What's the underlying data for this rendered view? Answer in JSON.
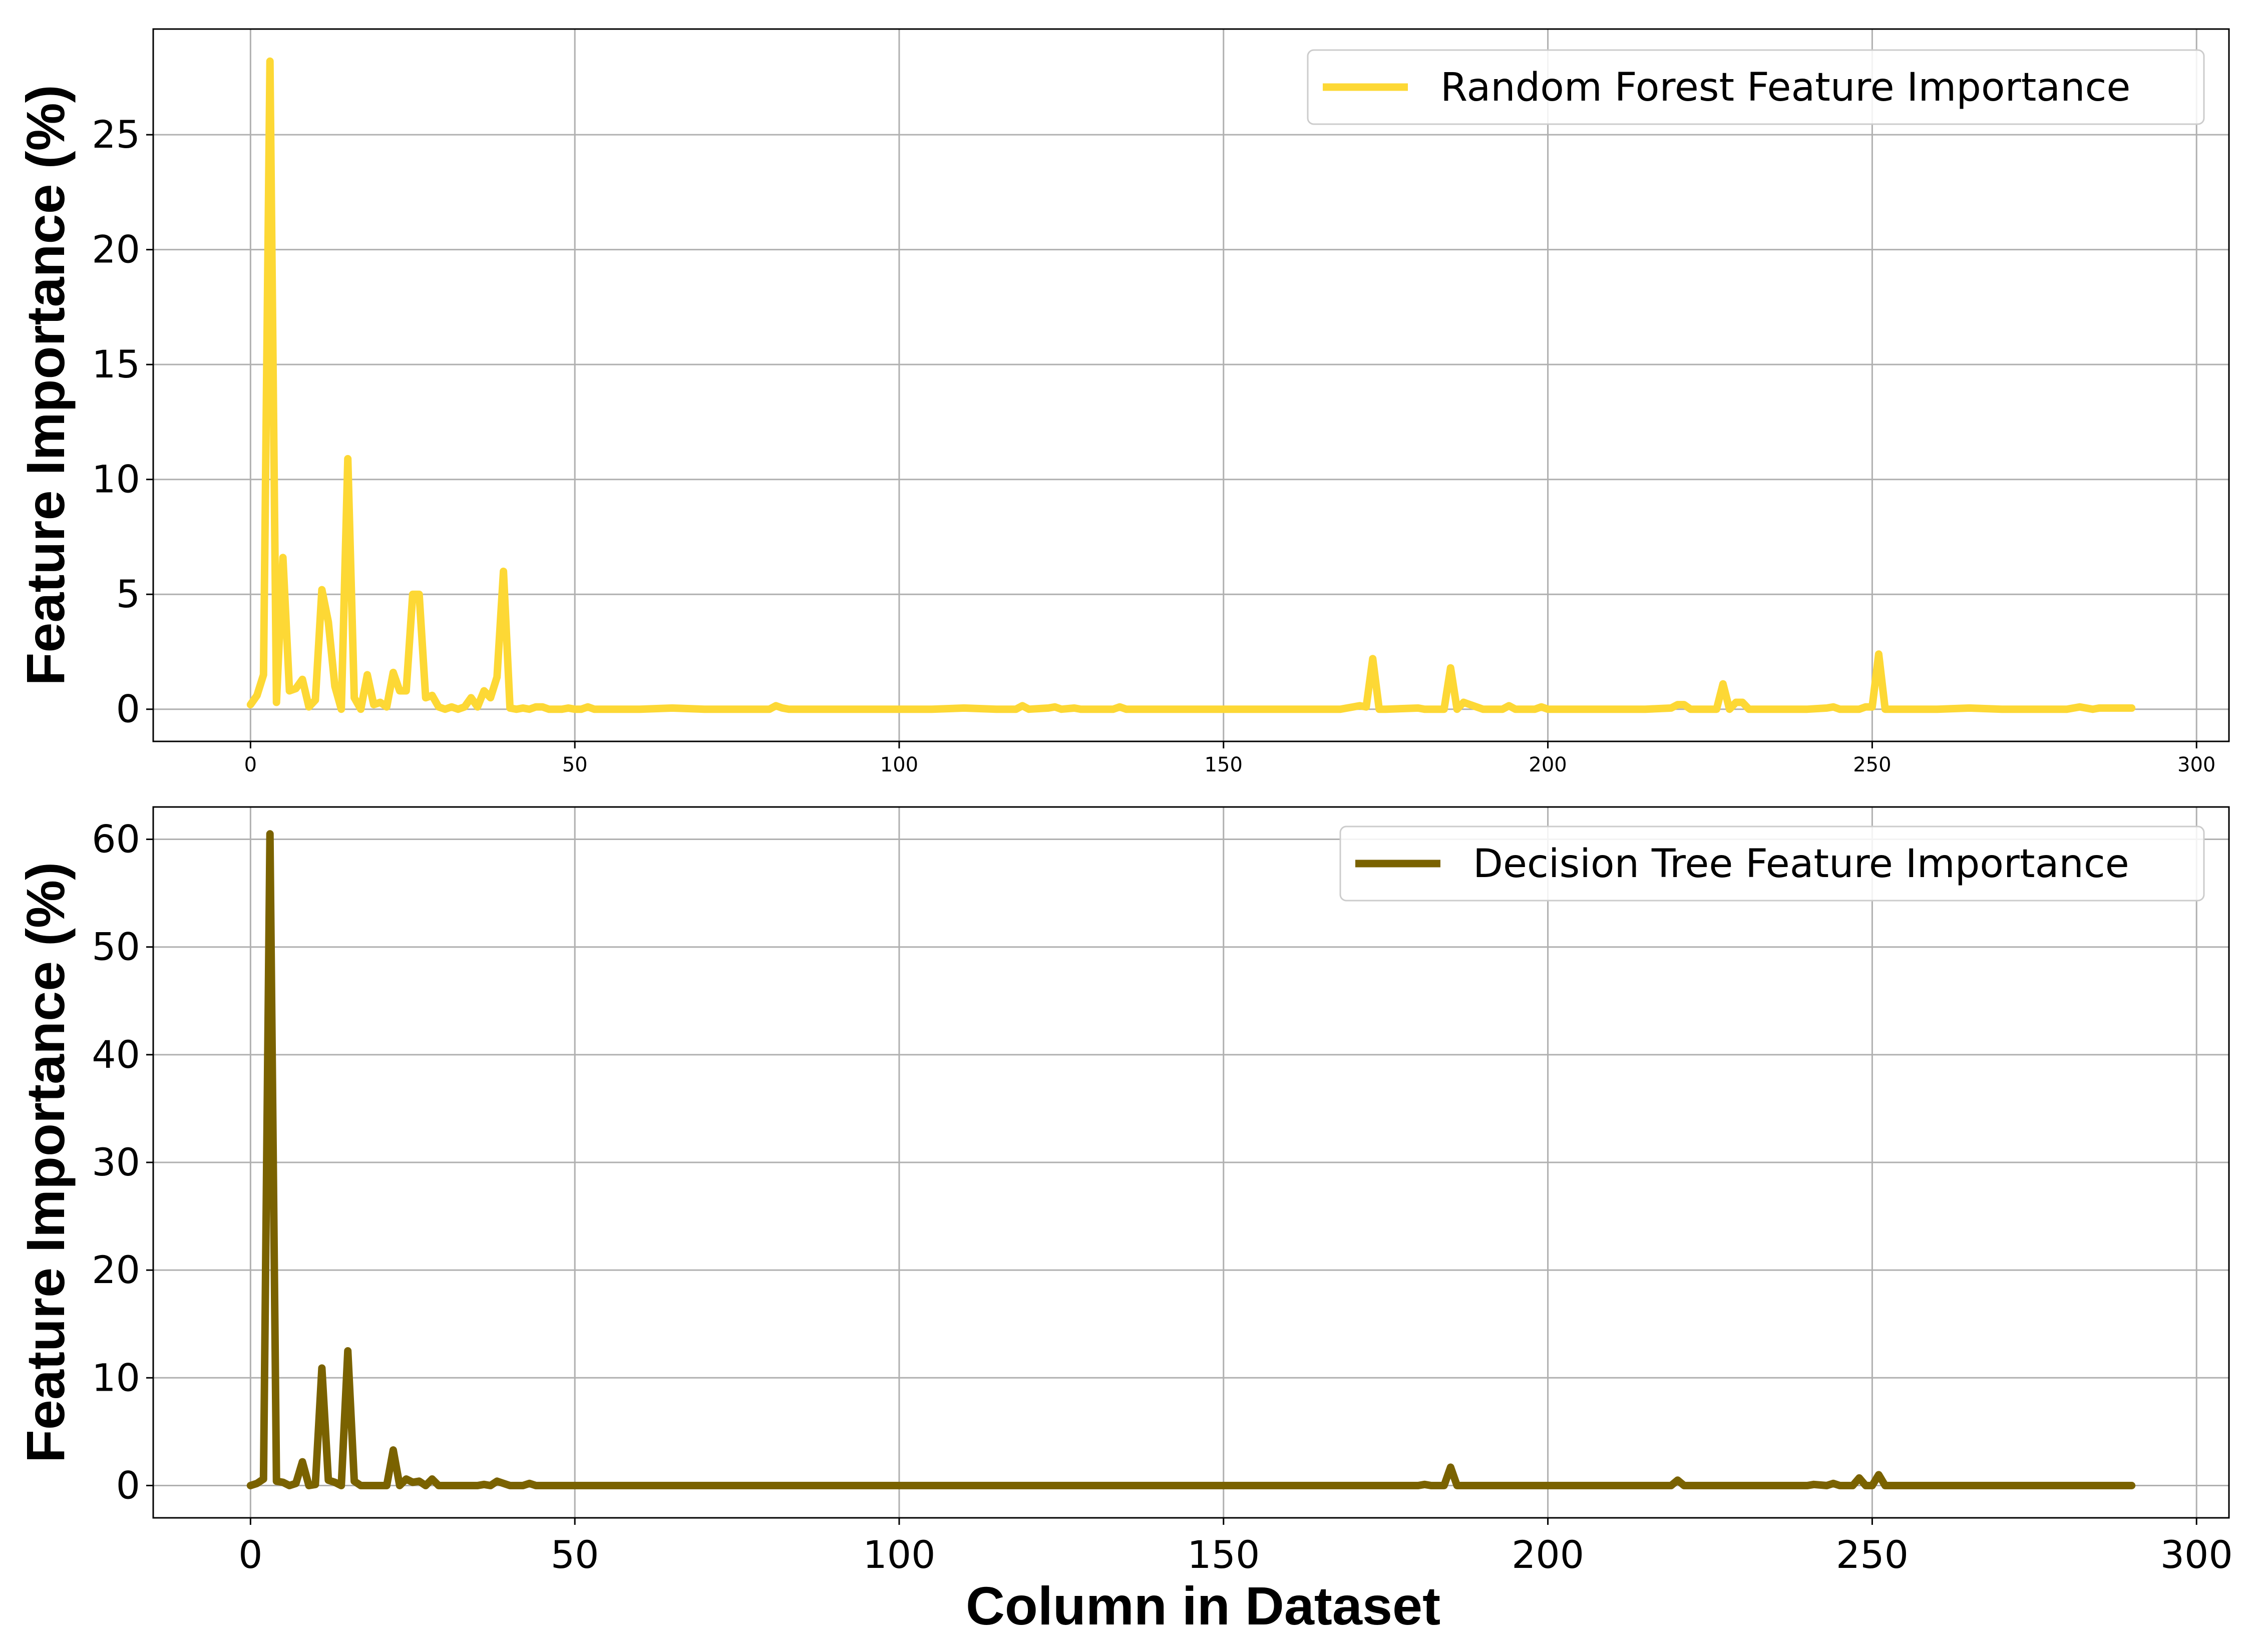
{
  "figure": {
    "xlabel": "Column in Dataset"
  },
  "chart_data": [
    {
      "type": "line",
      "title": "",
      "xlabel": "",
      "ylabel": "Feature Importance (%)",
      "xlim": [
        -15,
        305
      ],
      "ylim": [
        -1.4,
        29.6
      ],
      "xticks": [
        0,
        50,
        100,
        150,
        200,
        250,
        300
      ],
      "yticks": [
        0,
        5,
        10,
        15,
        20,
        25
      ],
      "grid": true,
      "legend_position": "top-right",
      "series": [
        {
          "name": "Random Forest Feature Importance",
          "color": "#FDD835",
          "x": [
            0,
            1,
            2,
            3,
            4,
            5,
            6,
            7,
            8,
            9,
            10,
            11,
            12,
            13,
            14,
            15,
            16,
            17,
            18,
            19,
            20,
            21,
            22,
            23,
            24,
            25,
            26,
            27,
            28,
            29,
            30,
            31,
            32,
            33,
            34,
            35,
            36,
            37,
            38,
            39,
            40,
            41,
            42,
            43,
            44,
            45,
            46,
            47,
            48,
            49,
            50,
            51,
            52,
            53,
            54,
            55,
            60,
            65,
            70,
            75,
            80,
            81,
            82,
            83,
            85,
            90,
            95,
            100,
            105,
            110,
            115,
            118,
            119,
            120,
            123,
            124,
            125,
            127,
            128,
            130,
            133,
            134,
            135,
            140,
            145,
            150,
            155,
            160,
            165,
            168,
            170,
            171,
            172,
            173,
            174,
            175,
            180,
            181,
            182,
            183,
            184,
            185,
            186,
            187,
            188,
            190,
            193,
            194,
            195,
            198,
            199,
            200,
            205,
            210,
            215,
            219,
            220,
            221,
            222,
            225,
            226,
            227,
            228,
            229,
            230,
            231,
            235,
            240,
            243,
            244,
            245,
            248,
            249,
            250,
            251,
            252,
            253,
            255,
            260,
            265,
            270,
            275,
            280,
            282,
            284,
            285,
            290
          ],
          "y": [
            0.2,
            0.6,
            1.5,
            28.2,
            0.3,
            6.6,
            0.8,
            0.9,
            1.3,
            0.1,
            0.4,
            5.2,
            3.8,
            1.0,
            0.0,
            10.9,
            0.5,
            0.0,
            1.5,
            0.2,
            0.3,
            0.1,
            1.6,
            0.8,
            0.8,
            5.0,
            5.0,
            0.5,
            0.6,
            0.1,
            0.0,
            0.1,
            0.0,
            0.1,
            0.5,
            0.1,
            0.8,
            0.5,
            1.4,
            6.0,
            0.05,
            0.0,
            0.05,
            0.0,
            0.1,
            0.1,
            0.0,
            0.0,
            0.0,
            0.05,
            0.0,
            0.0,
            0.1,
            0.0,
            0.0,
            0.0,
            0.0,
            0.05,
            0.0,
            0.0,
            0.0,
            0.15,
            0.05,
            0.0,
            0.0,
            0.0,
            0.0,
            0.0,
            0.0,
            0.05,
            0.0,
            0.0,
            0.15,
            0.0,
            0.05,
            0.1,
            0.0,
            0.05,
            0.0,
            0.0,
            0.0,
            0.1,
            0.0,
            0.0,
            0.0,
            0.0,
            0.0,
            0.0,
            0.0,
            0.0,
            0.1,
            0.15,
            0.1,
            2.2,
            0.0,
            0.0,
            0.05,
            0.0,
            0.0,
            0.0,
            0.0,
            1.8,
            0.0,
            0.3,
            0.2,
            0.0,
            0.0,
            0.15,
            0.0,
            0.0,
            0.1,
            0.0,
            0.0,
            0.0,
            0.0,
            0.05,
            0.2,
            0.2,
            0.0,
            0.0,
            0.0,
            1.1,
            0.0,
            0.3,
            0.3,
            0.0,
            0.0,
            0.0,
            0.05,
            0.1,
            0.0,
            0.0,
            0.1,
            0.1,
            2.4,
            0.0,
            0.0,
            0.0,
            0.0,
            0.05,
            0.0,
            0.0,
            0.0,
            0.1,
            0.0,
            0.05,
            0.05
          ]
        }
      ]
    },
    {
      "type": "line",
      "title": "",
      "xlabel": "Column in Dataset",
      "ylabel": "Feature Importance (%)",
      "xlim": [
        -15,
        305
      ],
      "ylim": [
        -3.0,
        63.0
      ],
      "xticks": [
        0,
        50,
        100,
        150,
        200,
        250,
        300
      ],
      "yticks": [
        0,
        10,
        20,
        30,
        40,
        50,
        60
      ],
      "grid": true,
      "legend_position": "top-right",
      "series": [
        {
          "name": "Decision Tree Feature Importance",
          "color": "#7A6200",
          "x": [
            0,
            1,
            2,
            3,
            4,
            5,
            6,
            7,
            8,
            9,
            10,
            11,
            12,
            13,
            14,
            15,
            16,
            17,
            18,
            19,
            20,
            21,
            22,
            23,
            24,
            25,
            26,
            27,
            28,
            29,
            30,
            35,
            36,
            37,
            38,
            39,
            40,
            42,
            43,
            44,
            45,
            50,
            60,
            80,
            100,
            150,
            175,
            180,
            181,
            182,
            183,
            184,
            185,
            186,
            187,
            190,
            200,
            210,
            219,
            220,
            221,
            222,
            230,
            240,
            241,
            243,
            244,
            245,
            247,
            248,
            249,
            250,
            251,
            252,
            253,
            260,
            270,
            280,
            290
          ],
          "y": [
            0.0,
            0.2,
            0.6,
            60.5,
            0.4,
            0.3,
            0.0,
            0.2,
            2.2,
            0.0,
            0.1,
            10.9,
            0.5,
            0.3,
            0.0,
            12.5,
            0.4,
            0.0,
            0.0,
            0.0,
            0.0,
            0.0,
            3.3,
            0.0,
            0.6,
            0.3,
            0.4,
            0.0,
            0.6,
            0.0,
            0.0,
            0.0,
            0.1,
            0.0,
            0.4,
            0.2,
            0.0,
            0.0,
            0.2,
            0.0,
            0.0,
            0.0,
            0.0,
            0.0,
            0.0,
            0.0,
            0.0,
            0.0,
            0.1,
            0.0,
            0.0,
            0.0,
            1.7,
            0.0,
            0.0,
            0.0,
            0.0,
            0.0,
            0.0,
            0.5,
            0.0,
            0.0,
            0.0,
            0.0,
            0.1,
            0.0,
            0.2,
            0.0,
            0.0,
            0.7,
            0.0,
            0.0,
            1.0,
            0.0,
            0.0,
            0.0,
            0.0,
            0.0,
            0.0
          ]
        }
      ]
    }
  ]
}
